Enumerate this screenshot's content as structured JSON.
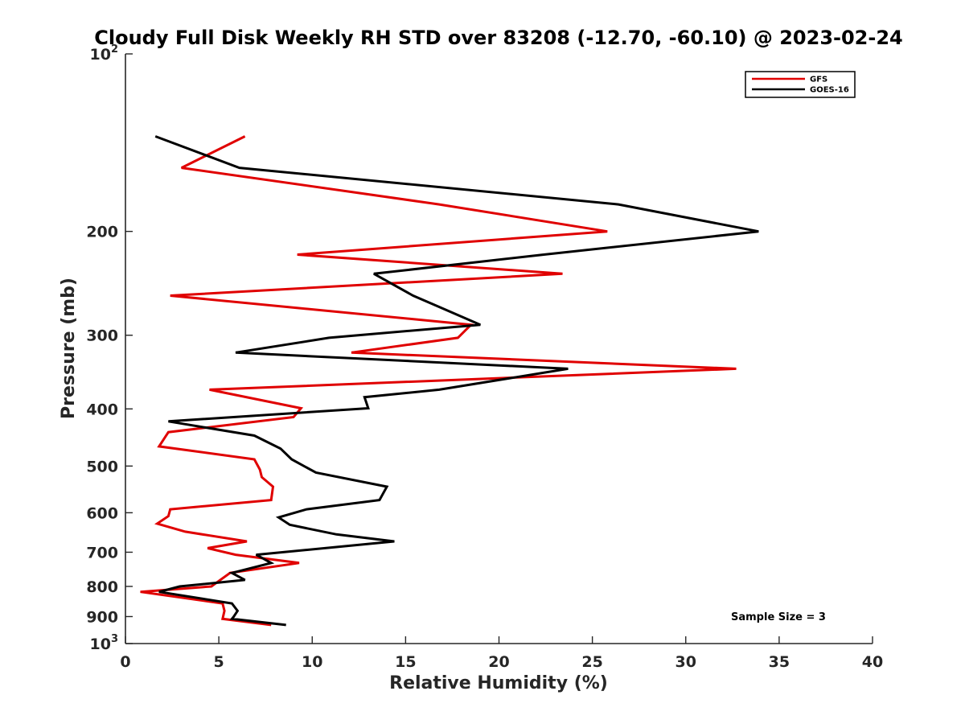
{
  "chart_data": {
    "type": "line",
    "title": "Cloudy Full Disk Weekly RH STD over 83208 (-12.70, -60.10) @ 2023-02-24",
    "xlabel": "Relative Humidity (%)",
    "ylabel": "Pressure (mb)",
    "xlim": [
      0,
      40
    ],
    "ylim": [
      100,
      1000
    ],
    "y_scale": "log",
    "y_reversed": true,
    "x_ticks": [
      0,
      5,
      10,
      15,
      20,
      25,
      30,
      35,
      40
    ],
    "x_tick_labels": [
      "0",
      "5",
      "10",
      "15",
      "20",
      "25",
      "30",
      "35",
      "40"
    ],
    "y_ticks": [
      {
        "value": 100,
        "label": "10",
        "sup": "2"
      },
      {
        "value": 200,
        "label": "200"
      },
      {
        "value": 300,
        "label": "300"
      },
      {
        "value": 400,
        "label": "400"
      },
      {
        "value": 500,
        "label": "500"
      },
      {
        "value": 600,
        "label": "600"
      },
      {
        "value": 700,
        "label": "700"
      },
      {
        "value": 800,
        "label": "800"
      },
      {
        "value": 900,
        "label": "900"
      },
      {
        "value": 1000,
        "label": "10",
        "sup": "3"
      }
    ],
    "legend": {
      "position": "top-right",
      "entries": [
        "GFS",
        "GOES-16"
      ]
    },
    "annotation": "Sample Size = 3",
    "series": [
      {
        "name": "GFS",
        "color": "#e00000",
        "points": [
          [
            6.4,
            138
          ],
          [
            3.0,
            156
          ],
          [
            16.8,
            180
          ],
          [
            25.8,
            200
          ],
          [
            9.2,
            219
          ],
          [
            23.4,
            236
          ],
          [
            2.4,
            257
          ],
          [
            18.5,
            288
          ],
          [
            17.8,
            303
          ],
          [
            12.1,
            321
          ],
          [
            32.7,
            342
          ],
          [
            4.5,
            371
          ],
          [
            9.4,
            399
          ],
          [
            9.0,
            413
          ],
          [
            2.3,
            438
          ],
          [
            1.8,
            463
          ],
          [
            6.9,
            487
          ],
          [
            7.2,
            507
          ],
          [
            7.3,
            522
          ],
          [
            7.9,
            542
          ],
          [
            7.8,
            571
          ],
          [
            2.4,
            592
          ],
          [
            2.3,
            608
          ],
          [
            1.7,
            626
          ],
          [
            3.2,
            646
          ],
          [
            6.5,
            671
          ],
          [
            4.4,
            689
          ],
          [
            5.9,
            707
          ],
          [
            9.3,
            730
          ],
          [
            5.6,
            759
          ],
          [
            4.6,
            800
          ],
          [
            0.8,
            817
          ],
          [
            5.2,
            855
          ],
          [
            5.3,
            880
          ],
          [
            5.2,
            908
          ],
          [
            7.8,
            930
          ]
        ]
      },
      {
        "name": "GOES-16",
        "color": "#000000",
        "points": [
          [
            1.6,
            138
          ],
          [
            6.1,
            156
          ],
          [
            26.4,
            180
          ],
          [
            33.9,
            200
          ],
          [
            22.4,
            219
          ],
          [
            13.3,
            236
          ],
          [
            15.4,
            257
          ],
          [
            19.0,
            288
          ],
          [
            10.9,
            303
          ],
          [
            5.9,
            321
          ],
          [
            23.7,
            342
          ],
          [
            16.8,
            371
          ],
          [
            12.8,
            382
          ],
          [
            13.0,
            399
          ],
          [
            2.3,
            420
          ],
          [
            6.9,
            444
          ],
          [
            8.3,
            467
          ],
          [
            8.9,
            487
          ],
          [
            10.2,
            513
          ],
          [
            14.0,
            542
          ],
          [
            13.6,
            571
          ],
          [
            9.7,
            592
          ],
          [
            8.2,
            611
          ],
          [
            8.8,
            629
          ],
          [
            11.3,
            653
          ],
          [
            14.4,
            671
          ],
          [
            7.0,
            707
          ],
          [
            7.8,
            730
          ],
          [
            5.7,
            759
          ],
          [
            6.4,
            780
          ],
          [
            2.9,
            800
          ],
          [
            1.8,
            817
          ],
          [
            5.7,
            855
          ],
          [
            6.0,
            880
          ],
          [
            5.8,
            900
          ],
          [
            5.7,
            908
          ],
          [
            8.6,
            930
          ]
        ]
      }
    ]
  }
}
